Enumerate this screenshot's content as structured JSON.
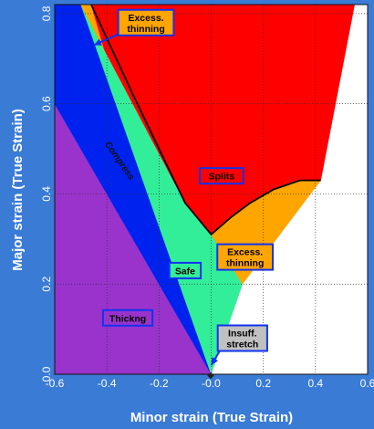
{
  "chart_data": {
    "type": "area",
    "xlabel": "Minor strain (True Strain)",
    "ylabel": "Major strain (True Strain)",
    "xlim": [
      -0.6,
      0.6
    ],
    "ylim": [
      0.0,
      0.82
    ],
    "x_ticks": [
      "-0.6",
      "-0.4",
      "-0.2",
      "-0.0",
      "0.2",
      "0.4",
      "0.6"
    ],
    "y_ticks": [
      "0.0",
      "0.2",
      "0.4",
      "0.6",
      "0.8"
    ],
    "grid": true,
    "background_color": "#ffffff",
    "regions": [
      {
        "name": "Thickng",
        "color": "#9933cc",
        "label_color": "#000000",
        "polygon": [
          [
            -0.6,
            0.0
          ],
          [
            0.0,
            0.0
          ],
          [
            -0.6,
            0.6
          ]
        ]
      },
      {
        "name": "Compress",
        "color": "#0022ee",
        "label_color": "#000000",
        "polygon": [
          [
            -0.6,
            0.6
          ],
          [
            0.0,
            0.0
          ],
          [
            -0.5,
            0.82
          ],
          [
            -0.6,
            0.82
          ]
        ]
      },
      {
        "name": "Safe",
        "color": "#33ee99",
        "label_color": "#000000",
        "polygon": [
          [
            -0.5,
            0.82
          ],
          [
            0.0,
            0.0
          ],
          [
            0.12,
            0.2
          ],
          [
            0.0,
            0.31
          ],
          [
            -0.1,
            0.38
          ]
        ]
      },
      {
        "name": "Insuff. stretch",
        "color": "#c0c0c0",
        "label_color": "#000000",
        "polygon": [
          [
            -0.005,
            0.0
          ],
          [
            0.0,
            0.0
          ],
          [
            0.0,
            0.02
          ]
        ]
      },
      {
        "name": "Excess. thinning",
        "color": "#ffa500",
        "label_color": "#000000",
        "polygon": [
          [
            0.0,
            0.31
          ],
          [
            0.12,
            0.2
          ],
          [
            0.42,
            0.43
          ],
          [
            0.34,
            0.43
          ],
          [
            0.24,
            0.41
          ],
          [
            0.15,
            0.38
          ],
          [
            0.08,
            0.35
          ]
        ]
      },
      {
        "name": "Excess. thinning",
        "color": "#ffa500",
        "label_color": "#000000",
        "polygon": [
          [
            -0.46,
            0.82
          ],
          [
            -0.5,
            0.82
          ],
          [
            -0.41,
            0.72
          ]
        ]
      },
      {
        "name": "Splits",
        "color": "#ff0000",
        "label_color": "#000000",
        "polygon": [
          [
            -0.46,
            0.82
          ],
          [
            0.55,
            0.82
          ],
          [
            0.42,
            0.43
          ],
          [
            0.34,
            0.43
          ],
          [
            0.24,
            0.41
          ],
          [
            0.15,
            0.38
          ],
          [
            0.08,
            0.35
          ],
          [
            0.0,
            0.31
          ],
          [
            -0.1,
            0.38
          ],
          [
            -0.41,
            0.72
          ]
        ]
      }
    ],
    "forming_limit_curve": [
      [
        -0.46,
        0.82
      ],
      [
        -0.3,
        0.62
      ],
      [
        -0.1,
        0.38
      ],
      [
        0.0,
        0.31
      ],
      [
        0.08,
        0.35
      ],
      [
        0.15,
        0.38
      ],
      [
        0.24,
        0.41
      ],
      [
        0.34,
        0.43
      ],
      [
        0.42,
        0.43
      ]
    ],
    "annotations": [
      {
        "text": "Excess.",
        "line2": "thinning",
        "x": -0.25,
        "y": 0.78,
        "box_fill": "#ffa500",
        "text_color": "#000000",
        "arrow_to": [
          -0.45,
          0.73
        ]
      },
      {
        "text": "Splits",
        "line2": "",
        "x": 0.04,
        "y": 0.44,
        "box_fill": "#ff0000",
        "text_color": "#000000",
        "arrow_to": null
      },
      {
        "text": "Excess.",
        "line2": "thinning",
        "x": 0.13,
        "y": 0.26,
        "box_fill": "#ffa500",
        "text_color": "#000000",
        "arrow_to": null
      },
      {
        "text": "Safe",
        "line2": "",
        "x": -0.1,
        "y": 0.23,
        "box_fill": "#33ee99",
        "text_color": "#000000",
        "arrow_to": null
      },
      {
        "text": "Thickng",
        "line2": "",
        "x": -0.32,
        "y": 0.125,
        "box_fill": "#9933cc",
        "text_color": "#000000",
        "arrow_to": null
      },
      {
        "text": "Insuff.",
        "line2": "stretch",
        "x": 0.12,
        "y": 0.08,
        "box_fill": "#c0c0c0",
        "text_color": "#000000",
        "arrow_to": [
          0.0,
          0.02
        ]
      }
    ],
    "curve_label": {
      "text": "Compress",
      "x": -0.36,
      "y": 0.47,
      "angle_deg": 55
    }
  }
}
